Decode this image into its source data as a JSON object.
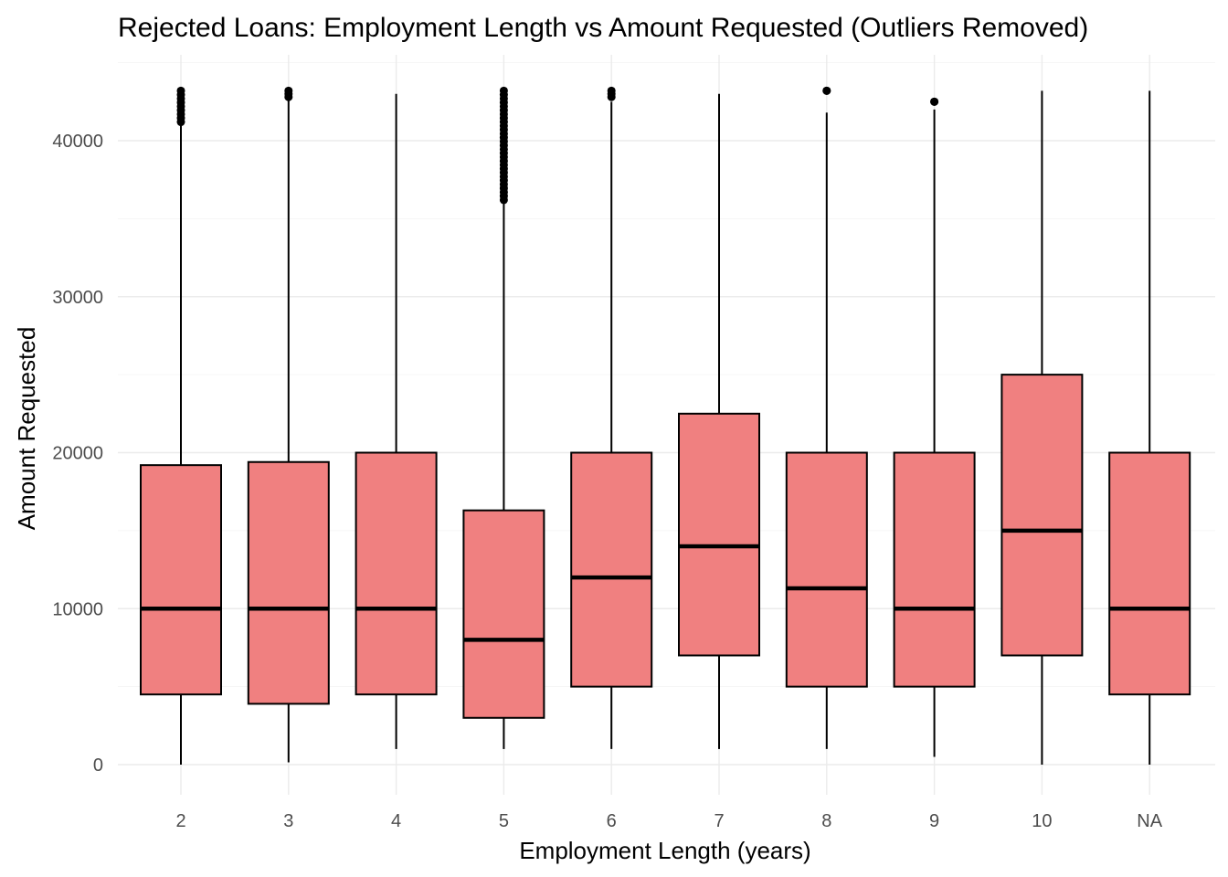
{
  "chart_data": {
    "type": "boxplot",
    "title": "Rejected Loans: Employment Length vs Amount Requested (Outliers Removed)",
    "xlabel": "Employment Length (years)",
    "ylabel": "Amount Requested",
    "categories": [
      "2",
      "3",
      "4",
      "5",
      "6",
      "7",
      "8",
      "9",
      "10",
      "NA"
    ],
    "ylim": [
      -2500,
      45500
    ],
    "yticks": [
      0,
      10000,
      20000,
      30000,
      40000
    ],
    "grid": true,
    "legend": "none",
    "box_fill": "#F08080",
    "box_stroke": "#000000",
    "boxes": [
      {
        "category": "2",
        "whisker_low": 0,
        "q1": 4500,
        "median": 10000,
        "q3": 19200,
        "whisker_high": 41000,
        "outliers_range": [
          41200,
          43200
        ]
      },
      {
        "category": "3",
        "whisker_low": 150,
        "q1": 3900,
        "median": 10000,
        "q3": 19400,
        "whisker_high": 42700,
        "outliers_range": [
          42800,
          43200
        ]
      },
      {
        "category": "4",
        "whisker_low": 1000,
        "q1": 4500,
        "median": 10000,
        "q3": 20000,
        "whisker_high": 43000,
        "outliers_range": null
      },
      {
        "category": "5",
        "whisker_low": 1000,
        "q1": 3000,
        "median": 8000,
        "q3": 16300,
        "whisker_high": 36000,
        "outliers_range": [
          36200,
          43200
        ]
      },
      {
        "category": "6",
        "whisker_low": 1000,
        "q1": 5000,
        "median": 12000,
        "q3": 20000,
        "whisker_high": 42500,
        "outliers_range": [
          42800,
          43200
        ]
      },
      {
        "category": "7",
        "whisker_low": 1000,
        "q1": 7000,
        "median": 14000,
        "q3": 22500,
        "whisker_high": 43000,
        "outliers_range": null
      },
      {
        "category": "8",
        "whisker_low": 1000,
        "q1": 5000,
        "median": 11300,
        "q3": 20000,
        "whisker_high": 41800,
        "outliers_range": [
          43200,
          43200
        ]
      },
      {
        "category": "9",
        "whisker_low": 500,
        "q1": 5000,
        "median": 10000,
        "q3": 20000,
        "whisker_high": 42000,
        "outliers_range": [
          42500,
          42500
        ]
      },
      {
        "category": "10",
        "whisker_low": 0,
        "q1": 7000,
        "median": 15000,
        "q3": 25000,
        "whisker_high": 43200,
        "outliers_range": null
      },
      {
        "category": "NA",
        "whisker_low": 0,
        "q1": 4500,
        "median": 10000,
        "q3": 20000,
        "whisker_high": 43200,
        "outliers_range": null
      }
    ]
  }
}
